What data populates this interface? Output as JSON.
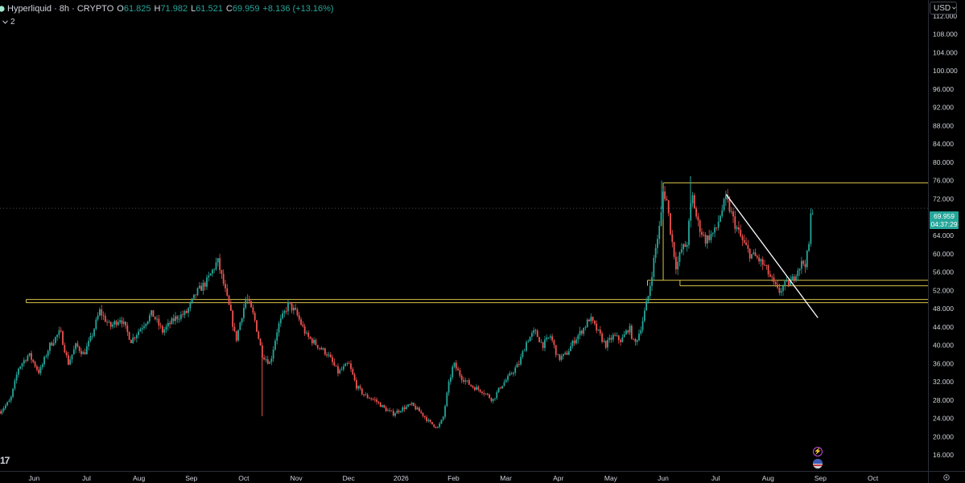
{
  "header": {
    "symbol": "Hyperliquid · 8h · CRYPTO",
    "open_label": "O",
    "open": "61.825",
    "high_label": "H",
    "high": "71.982",
    "low_label": "L",
    "low": "61.521",
    "close_label": "C",
    "close": "69.959",
    "change": "+8.136 (+13.16%)"
  },
  "indicators": {
    "toggle_icon": "chevron-down-icon",
    "count": "2"
  },
  "currency": {
    "label": "USD",
    "icon": "chevron-down-icon"
  },
  "last_price": {
    "value": "69.959",
    "countdown": "04:37:29"
  },
  "colors": {
    "background": "#000000",
    "up": "#26a69a",
    "down": "#ef5350",
    "zone_lines": "#d8c24a",
    "trendline": "#ffffff",
    "axis_text": "#d1d4dc"
  },
  "branding": {
    "logo_text": "17"
  },
  "chart_data": {
    "type": "candlestick",
    "title": "Hyperliquid · 8h · CRYPTO",
    "y_axis": {
      "ticks": [
        "112.000",
        "108.000",
        "104.000",
        "100.000",
        "96.000",
        "92.000",
        "88.000",
        "84.000",
        "80.000",
        "76.000",
        "72.000",
        "68.000",
        "64.000",
        "60.000",
        "56.000",
        "52.000",
        "48.000",
        "44.000",
        "40.000",
        "36.000",
        "32.000",
        "28.000",
        "24.000",
        "20.000",
        "16.000"
      ],
      "tick_values": [
        112,
        108,
        104,
        100,
        96,
        92,
        88,
        84,
        80,
        76,
        72,
        68,
        64,
        60,
        56,
        52,
        48,
        44,
        40,
        36,
        32,
        28,
        24,
        20,
        16
      ],
      "range": [
        12.5,
        115.5
      ]
    },
    "x_axis": {
      "labels": [
        "Jun",
        "Jul",
        "Aug",
        "Sep",
        "Oct",
        "Nov",
        "Dec",
        "2026",
        "Feb",
        "Mar",
        "Apr",
        "May",
        "Jun",
        "Jul",
        "Aug",
        "Sep",
        "Oct"
      ],
      "label_month_index": [
        0,
        1,
        2,
        3,
        4,
        5,
        6,
        7,
        8,
        9,
        10,
        11,
        12,
        13,
        14,
        15,
        16
      ],
      "range_month_index": [
        -0.65,
        17.05
      ]
    },
    "last_close": 69.959,
    "price_path": [
      [
        -0.65,
        25.5
      ],
      [
        -0.45,
        28
      ],
      [
        -0.3,
        35
      ],
      [
        -0.1,
        38
      ],
      [
        0.1,
        34
      ],
      [
        0.3,
        40
      ],
      [
        0.5,
        43
      ],
      [
        0.65,
        36
      ],
      [
        0.8,
        40
      ],
      [
        0.95,
        38
      ],
      [
        1.1,
        42
      ],
      [
        1.25,
        47.5
      ],
      [
        1.45,
        44
      ],
      [
        1.65,
        46
      ],
      [
        1.85,
        41
      ],
      [
        2.05,
        44
      ],
      [
        2.25,
        47
      ],
      [
        2.45,
        43
      ],
      [
        2.7,
        46
      ],
      [
        2.9,
        47
      ],
      [
        3.1,
        51.5
      ],
      [
        3.3,
        54
      ],
      [
        3.5,
        58.5
      ],
      [
        3.6,
        54
      ],
      [
        3.75,
        47
      ],
      [
        3.85,
        41
      ],
      [
        3.95,
        46
      ],
      [
        4.05,
        50.5
      ],
      [
        4.2,
        46
      ],
      [
        4.35,
        38
      ],
      [
        4.5,
        36
      ],
      [
        4.65,
        44
      ],
      [
        4.85,
        49
      ],
      [
        5.0,
        47
      ],
      [
        5.2,
        42
      ],
      [
        5.4,
        40
      ],
      [
        5.6,
        38
      ],
      [
        5.8,
        34
      ],
      [
        6.0,
        36
      ],
      [
        6.15,
        31
      ],
      [
        6.3,
        29
      ],
      [
        6.5,
        28
      ],
      [
        6.7,
        26
      ],
      [
        6.85,
        25
      ],
      [
        7.0,
        26
      ],
      [
        7.2,
        27
      ],
      [
        7.4,
        25
      ],
      [
        7.55,
        23
      ],
      [
        7.7,
        22
      ],
      [
        7.8,
        24
      ],
      [
        7.9,
        31
      ],
      [
        8.0,
        36
      ],
      [
        8.15,
        33
      ],
      [
        8.35,
        31
      ],
      [
        8.55,
        30
      ],
      [
        8.75,
        28
      ],
      [
        8.9,
        31
      ],
      [
        9.05,
        33
      ],
      [
        9.25,
        36
      ],
      [
        9.4,
        41
      ],
      [
        9.55,
        43
      ],
      [
        9.7,
        40
      ],
      [
        9.85,
        42
      ],
      [
        10.0,
        37
      ],
      [
        10.15,
        38
      ],
      [
        10.3,
        41
      ],
      [
        10.5,
        44
      ],
      [
        10.6,
        46
      ],
      [
        10.75,
        43
      ],
      [
        10.9,
        40
      ],
      [
        11.05,
        42
      ],
      [
        11.2,
        41
      ],
      [
        11.35,
        44
      ],
      [
        11.45,
        40
      ],
      [
        11.55,
        43
      ],
      [
        11.62,
        46
      ],
      [
        11.72,
        51
      ],
      [
        11.8,
        57
      ],
      [
        11.88,
        63
      ],
      [
        11.95,
        67
      ],
      [
        12.0,
        74
      ],
      [
        12.07,
        71.5
      ],
      [
        12.15,
        64
      ],
      [
        12.25,
        57
      ],
      [
        12.35,
        61
      ],
      [
        12.45,
        62
      ],
      [
        12.55,
        73
      ],
      [
        12.65,
        67
      ],
      [
        12.8,
        63
      ],
      [
        13.0,
        65
      ],
      [
        13.1,
        69
      ],
      [
        13.2,
        72
      ],
      [
        13.35,
        67
      ],
      [
        13.5,
        63
      ],
      [
        13.65,
        60
      ],
      [
        13.8,
        59
      ],
      [
        13.95,
        57
      ],
      [
        14.1,
        53.5
      ],
      [
        14.2,
        51.5
      ],
      [
        14.3,
        53
      ],
      [
        14.45,
        54
      ],
      [
        14.55,
        56.5
      ],
      [
        14.65,
        58
      ],
      [
        14.72,
        58
      ],
      [
        14.78,
        62
      ],
      [
        14.82,
        69
      ],
      [
        14.85,
        70
      ]
    ],
    "spikes": [
      {
        "x": 4.35,
        "low": 24.5
      },
      {
        "x": 11.97,
        "high": 76
      },
      {
        "x": 12.52,
        "high": 77
      }
    ],
    "horizontal_lines": [
      {
        "from": -0.15,
        "to": 17.05,
        "y": 50
      },
      {
        "from": -0.15,
        "to": 17.05,
        "y": 49.3
      },
      {
        "from": 12.0,
        "to": 17.05,
        "y": 75.5
      },
      {
        "from": 11.7,
        "to": 17.05,
        "y": 54.2
      },
      {
        "from": 12.32,
        "to": 17.05,
        "y": 53
      }
    ],
    "vertical_segments": [
      {
        "x": -0.15,
        "y1": 49.3,
        "y2": 50
      },
      {
        "x": 12.0,
        "y1": 54.2,
        "y2": 75.5
      },
      {
        "x": 11.7,
        "y1": 53,
        "y2": 54.2
      },
      {
        "x": 12.32,
        "y1": 53,
        "y2": 54.2
      }
    ],
    "trendline": {
      "from": [
        13.2,
        73
      ],
      "to": [
        14.95,
        46
      ]
    },
    "last_price_line": 69.959
  }
}
